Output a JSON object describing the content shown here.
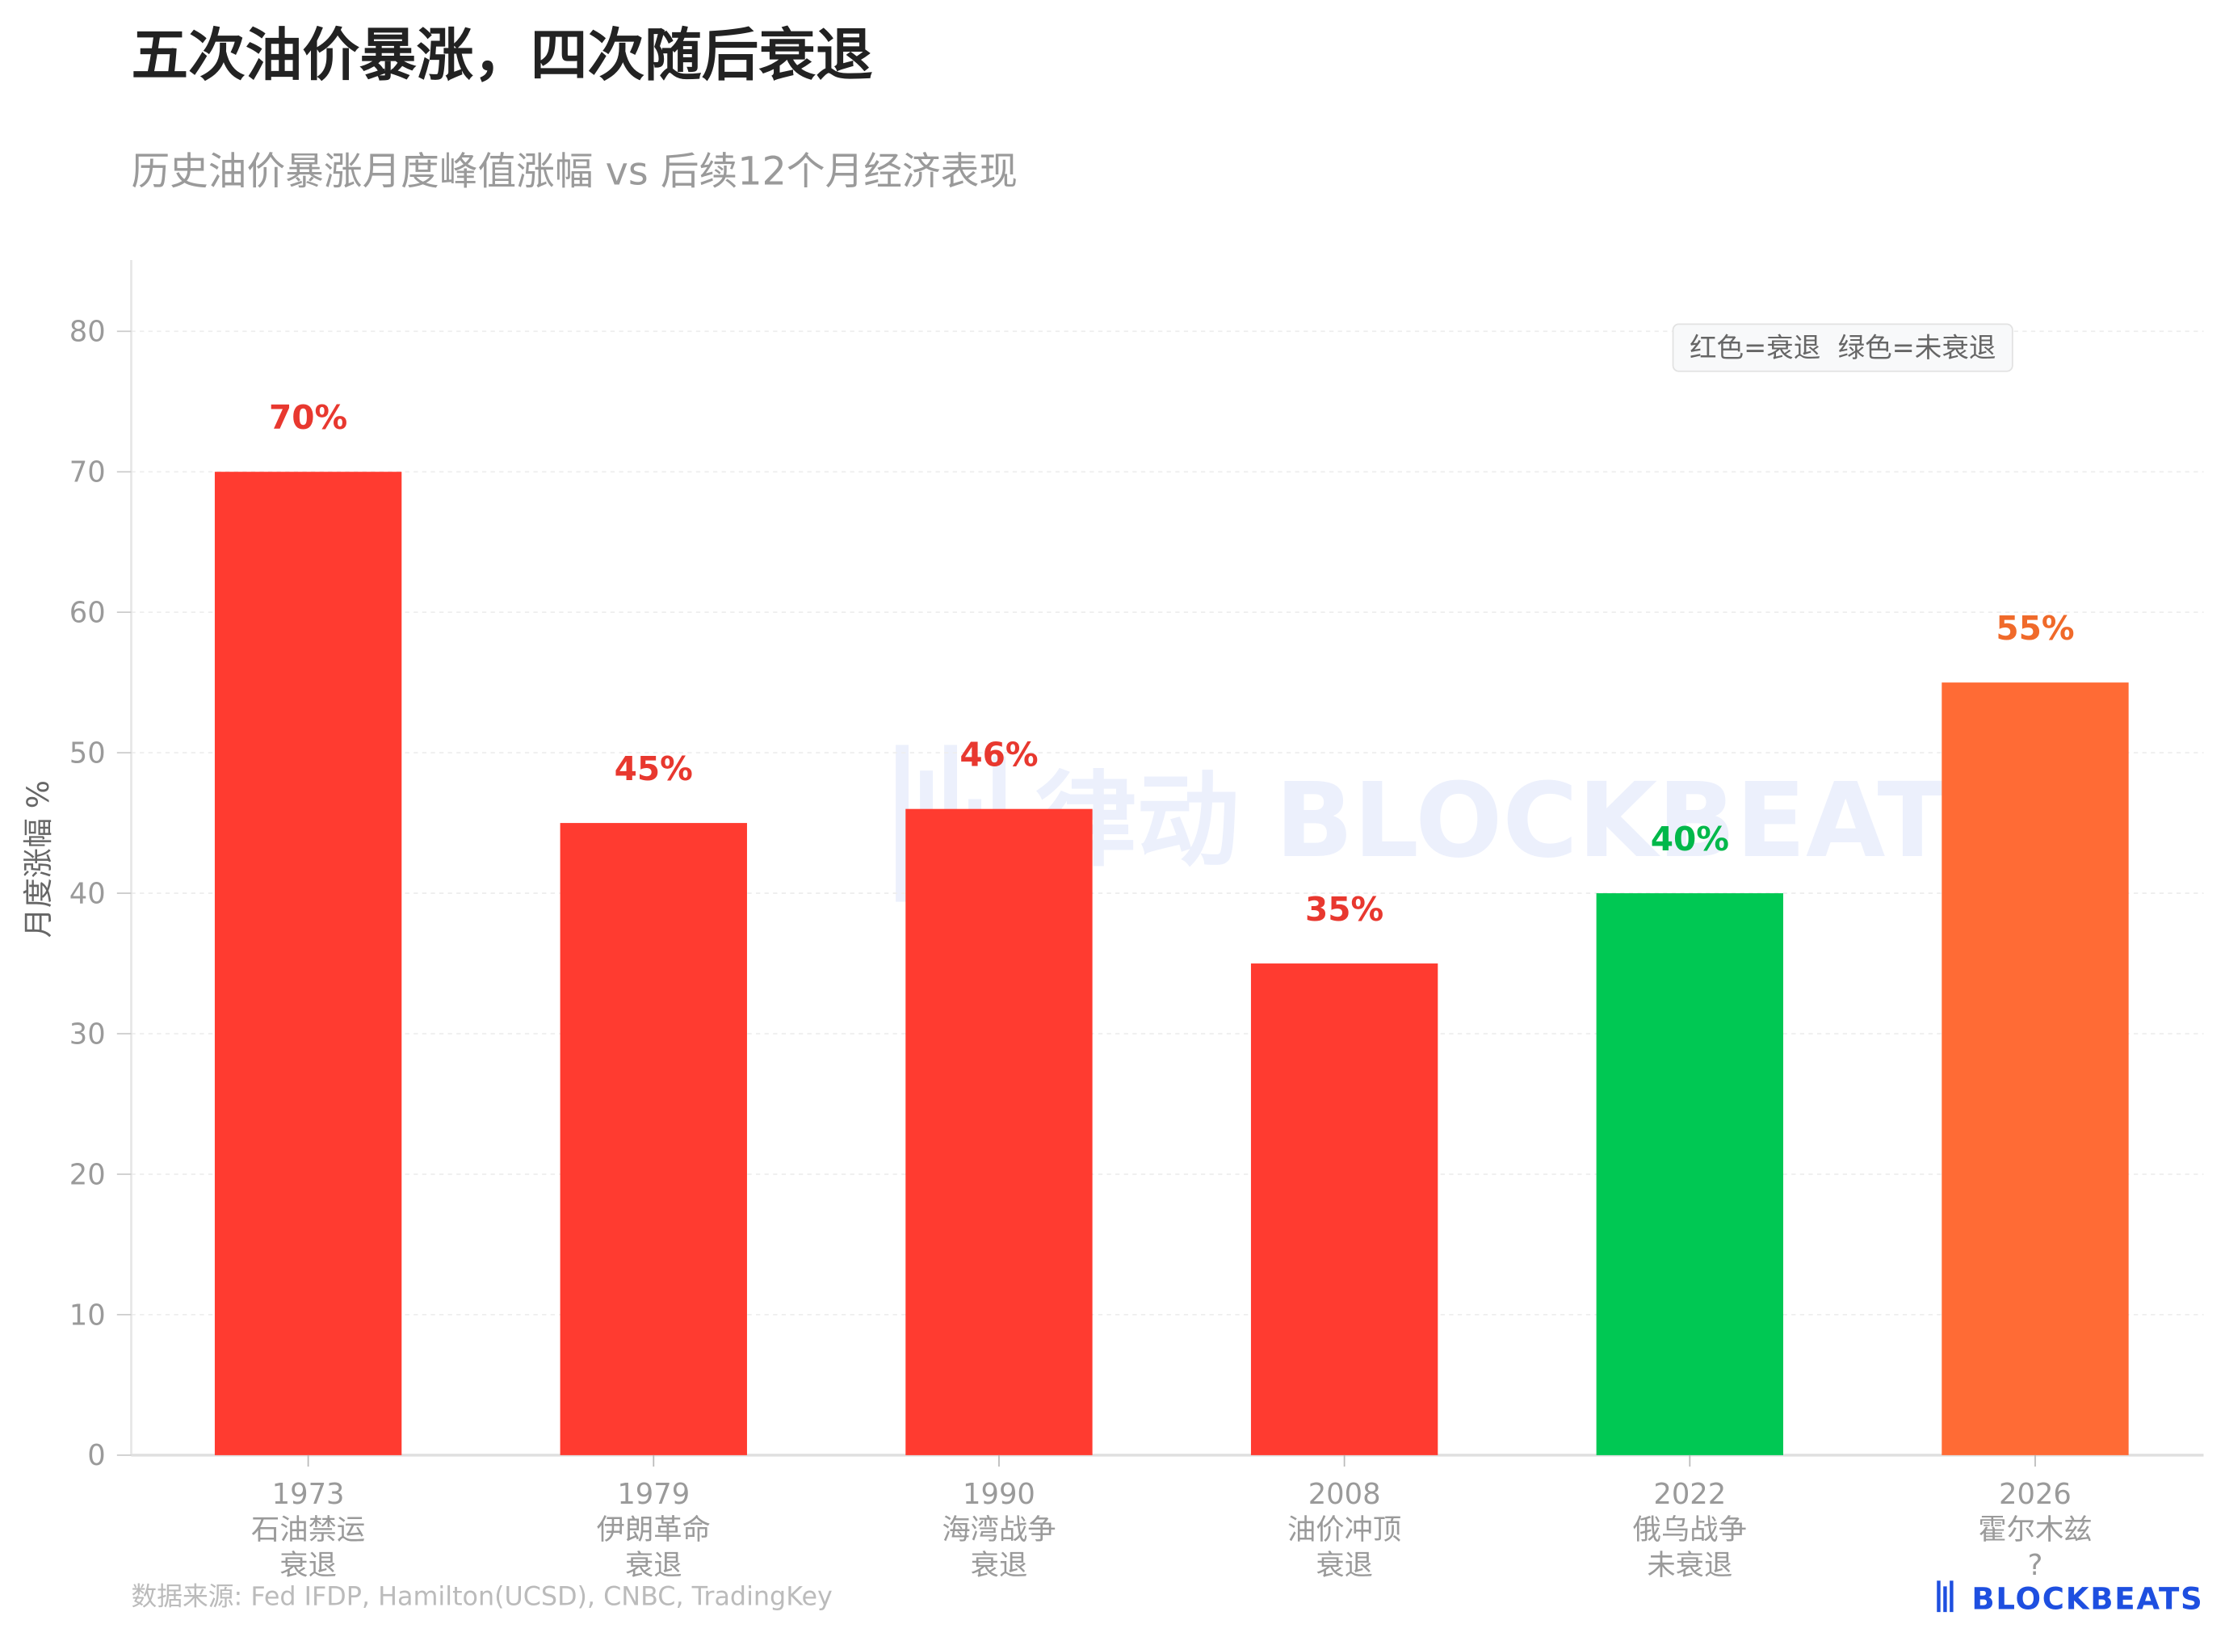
{
  "title": "五次油价暴涨，四次随后衰退",
  "subtitle": "历史油价暴涨月度峰值涨幅 vs 后续12个月经济表现",
  "legend_note": "红色=衰退  绿色=未衰退",
  "source": "数据来源: Fed IFDP, Hamilton(UCSD), CNBC, TradingKey",
  "logo": "BLOCKBEATS",
  "watermark": "律动 BLOCKBEATS",
  "colors": {
    "recession": "#FF3B30",
    "no_recession": "#00C853",
    "unknown": "#FF6B35",
    "recession_label": "#E8382F",
    "no_recession_label": "#00B84A",
    "unknown_label": "#F06A2A",
    "logo": "#1E4FE0"
  },
  "chart_data": {
    "type": "bar",
    "title": "五次油价暴涨，四次随后衰退",
    "subtitle": "历史油价暴涨月度峰值涨幅 vs 后续12个月经济表现",
    "ylabel": "月度涨幅 %",
    "xlabel": "",
    "ylim": [
      0,
      80
    ],
    "yticks": [
      0,
      10,
      20,
      30,
      40,
      50,
      60,
      70,
      80
    ],
    "grid": true,
    "legend": "top-right",
    "categories": [
      {
        "year": "1973",
        "event": "石油禁运",
        "outcome": "衰退",
        "status": "recession"
      },
      {
        "year": "1979",
        "event": "伊朗革命",
        "outcome": "衰退",
        "status": "recession"
      },
      {
        "year": "1990",
        "event": "海湾战争",
        "outcome": "衰退",
        "status": "recession"
      },
      {
        "year": "2008",
        "event": "油价冲顶",
        "outcome": "衰退",
        "status": "recession"
      },
      {
        "year": "2022",
        "event": "俄乌战争",
        "outcome": "未衰退",
        "status": "no_recession"
      },
      {
        "year": "2026",
        "event": "霍尔木兹",
        "outcome": "?",
        "status": "unknown"
      }
    ],
    "values": [
      70,
      45,
      46,
      35,
      40,
      55
    ],
    "data_labels": [
      "70%",
      "45%",
      "46%",
      "35%",
      "40%",
      "55%"
    ]
  }
}
